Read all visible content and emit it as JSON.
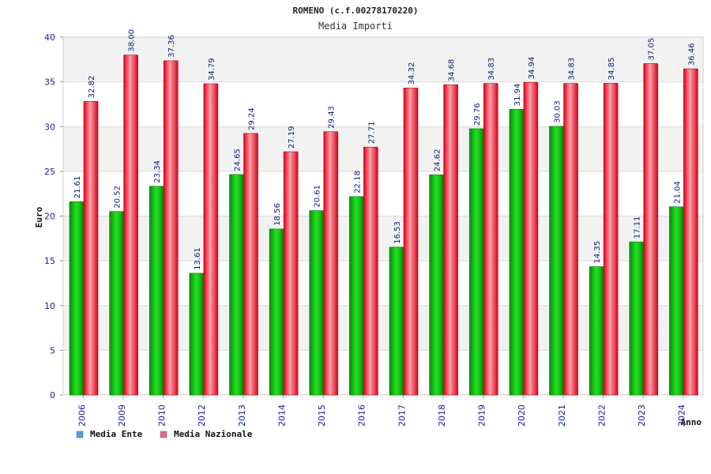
{
  "chart_data": {
    "type": "bar",
    "title": "ROMENO (c.f.00278170220)",
    "subtitle": "Media Importi",
    "xlabel": "Anno",
    "ylabel": "Euro",
    "ylim": [
      0,
      40
    ],
    "yticks": [
      0,
      5,
      10,
      15,
      20,
      25,
      30,
      35,
      40
    ],
    "grid": true,
    "legend_position": "bottom-left",
    "categories": [
      "2006",
      "2009",
      "2010",
      "2012",
      "2013",
      "2014",
      "2015",
      "2016",
      "2017",
      "2018",
      "2019",
      "2020",
      "2021",
      "2022",
      "2023",
      "2024"
    ],
    "series": [
      {
        "name": "Media Ente",
        "color": "#00b000",
        "legend_color": "#5b9bd5",
        "values": [
          21.61,
          20.52,
          23.34,
          13.61,
          24.65,
          18.56,
          20.61,
          22.18,
          16.53,
          24.62,
          29.76,
          31.94,
          30.03,
          14.35,
          17.11,
          21.04
        ],
        "labels": [
          "21.61",
          "20.52",
          "23.34",
          "13.61",
          "24.65",
          "18.56",
          "20.61",
          "22.18",
          "16.53",
          "24.62",
          "29.76",
          "31.94",
          "30.03",
          "14.35",
          "17.11",
          "21.04"
        ]
      },
      {
        "name": "Media Nazionale",
        "color": "#e8001c",
        "legend_color": "#d96b9a",
        "values": [
          32.82,
          38.0,
          37.36,
          34.79,
          29.24,
          27.19,
          29.43,
          27.71,
          34.32,
          34.68,
          34.83,
          34.94,
          34.83,
          34.85,
          37.05,
          36.46
        ],
        "labels": [
          "32.82",
          "38.00",
          "37.36",
          "34.79",
          "29.24",
          "27.19",
          "29.43",
          "27.71",
          "34.32",
          "34.68",
          "34.83",
          "34.94",
          "34.83",
          "34.85",
          "37.05",
          "36.46"
        ]
      }
    ]
  }
}
